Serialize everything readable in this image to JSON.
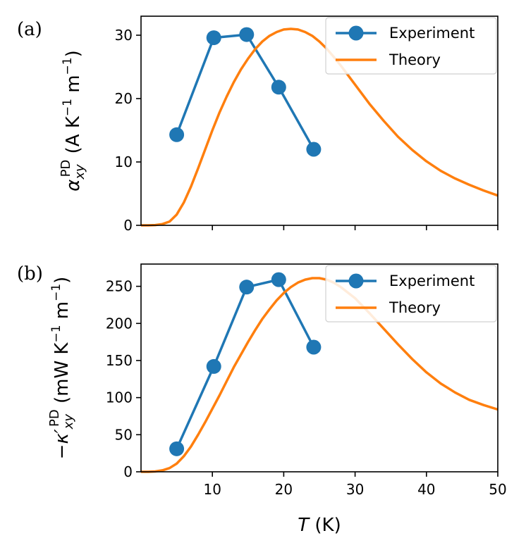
{
  "chart_data": [
    {
      "type": "line",
      "panel_label": "(a)",
      "ylabel": {
        "symbol": "α",
        "sub": "xy",
        "sup": "PD",
        "unit_prefix": " (A K",
        "unit_exp1": "−1",
        "unit_mid": " m",
        "unit_exp2": "−1",
        "unit_suffix": ")"
      },
      "xlim": [
        0,
        50
      ],
      "ylim": [
        0,
        33
      ],
      "yticks": [
        0,
        10,
        20,
        30
      ],
      "xticks": [
        10,
        20,
        30,
        40,
        50
      ],
      "show_xticklabels": false,
      "legend_position": "top-right",
      "series": [
        {
          "name": "Experiment",
          "kind": "line-marker",
          "color": "#1f77b4",
          "x": [
            5.0,
            10.2,
            14.8,
            19.3,
            24.2
          ],
          "y": [
            14.3,
            29.6,
            30.1,
            21.8,
            12.0
          ]
        },
        {
          "name": "Theory",
          "kind": "line",
          "color": "#ff7f0e",
          "x": [
            0,
            1,
            2,
            3,
            4,
            5,
            6,
            7,
            8,
            9,
            10,
            11,
            12,
            13,
            14,
            15,
            16,
            17,
            18,
            19,
            20,
            21,
            22,
            23,
            24,
            25,
            26,
            27,
            28,
            30,
            32,
            34,
            36,
            38,
            40,
            42,
            44,
            46,
            48,
            50
          ],
          "y": [
            0,
            0,
            0.05,
            0.2,
            0.6,
            1.7,
            3.6,
            6.1,
            9.0,
            12.0,
            15.0,
            17.8,
            20.3,
            22.6,
            24.6,
            26.3,
            27.8,
            29.0,
            29.9,
            30.5,
            30.9,
            31.0,
            30.9,
            30.5,
            29.9,
            29.0,
            27.9,
            26.6,
            25.2,
            22.2,
            19.2,
            16.5,
            14.0,
            11.9,
            10.1,
            8.6,
            7.4,
            6.4,
            5.5,
            4.7
          ]
        }
      ]
    },
    {
      "type": "line",
      "panel_label": "(b)",
      "ylabel": {
        "symbol": "−κ′",
        "sub": "xy",
        "sup": "PD",
        "unit_prefix": " (mW K",
        "unit_exp1": "−1",
        "unit_mid": " m",
        "unit_exp2": "−1",
        "unit_suffix": ")"
      },
      "xlabel": {
        "symbol": "T",
        "unit": " (K)"
      },
      "xlim": [
        0,
        50
      ],
      "ylim": [
        0,
        280
      ],
      "yticks": [
        0,
        50,
        100,
        150,
        200,
        250
      ],
      "xticks": [
        10,
        20,
        30,
        40,
        50
      ],
      "show_xticklabels": true,
      "legend_position": "top-right",
      "series": [
        {
          "name": "Experiment",
          "kind": "line-marker",
          "color": "#1f77b4",
          "x": [
            5.0,
            10.2,
            14.8,
            19.3,
            24.2
          ],
          "y": [
            31,
            142,
            249,
            259,
            168
          ]
        },
        {
          "name": "Theory",
          "kind": "line",
          "color": "#ff7f0e",
          "x": [
            0,
            1,
            2,
            3,
            4,
            5,
            6,
            7,
            8,
            9,
            10,
            11,
            12,
            13,
            14,
            15,
            16,
            17,
            18,
            19,
            20,
            21,
            22,
            23,
            24,
            25,
            26,
            27,
            28,
            30,
            32,
            34,
            36,
            38,
            40,
            42,
            44,
            46,
            48,
            50
          ],
          "y": [
            0,
            0,
            0.5,
            2,
            5,
            11,
            21,
            34,
            50,
            67,
            85,
            103,
            122,
            141,
            158,
            175,
            191,
            206,
            219,
            231,
            241,
            249,
            255,
            259,
            261,
            261,
            259,
            255,
            249,
            234,
            214,
            193,
            172,
            152,
            134,
            119,
            107,
            97,
            90,
            84
          ]
        }
      ]
    }
  ]
}
